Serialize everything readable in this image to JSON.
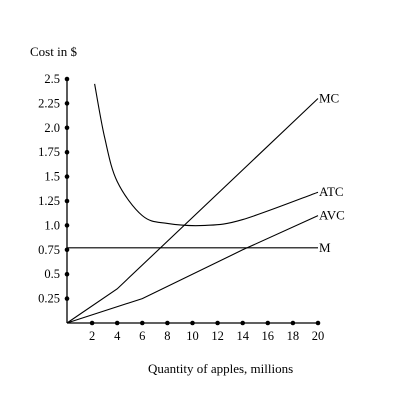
{
  "chart_data": {
    "type": "line",
    "ylabel": "Cost in $",
    "xlabel": "Quantity of apples, millions",
    "xlim": [
      0,
      20
    ],
    "ylim": [
      0,
      2.5
    ],
    "x_ticks": [
      "2",
      "4",
      "6",
      "8",
      "10",
      "12",
      "14",
      "16",
      "18",
      "20"
    ],
    "y_ticks": [
      "0.25",
      "0.5",
      "0.75",
      "1.0",
      "1.25",
      "1.5",
      "1.75",
      "2.0",
      "2.25",
      "2.5"
    ],
    "grid": false,
    "series": [
      {
        "name": "MC",
        "x": [
          0,
          4,
          20
        ],
        "y": [
          0,
          0.35,
          2.3
        ]
      },
      {
        "name": "ATC",
        "x": [
          2.2,
          3,
          4,
          6,
          8,
          11,
          14,
          20
        ],
        "y": [
          2.45,
          1.9,
          1.45,
          1.1,
          1.02,
          1.0,
          1.06,
          1.34
        ]
      },
      {
        "name": "AVC",
        "x": [
          0,
          6,
          14,
          20
        ],
        "y": [
          0,
          0.25,
          0.75,
          1.1
        ]
      },
      {
        "name": "M",
        "x": [
          0,
          20
        ],
        "y": [
          0.77,
          0.77
        ]
      }
    ]
  }
}
